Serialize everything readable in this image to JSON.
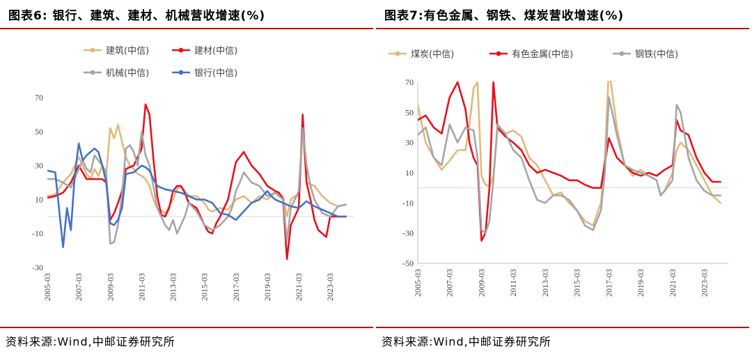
{
  "panels": [
    {
      "title": "图表6:   银行、建筑、建材、机械营收增速(%)",
      "source": "资料来源:Wind,中邮证券研究所",
      "chart_data": {
        "type": "line",
        "title": "图表6:   银行、建筑、建材、机械营收增速(%)",
        "ylim": [
          -30,
          70
        ],
        "yticks": [
          -30,
          -10,
          10,
          30,
          50,
          70
        ],
        "xlim": [
          2005.0,
          2024.5
        ],
        "xticks": [
          "2005-03",
          "2007-03",
          "2009-03",
          "2011-03",
          "2013-03",
          "2015-03",
          "2017-03",
          "2019-03",
          "2021-03",
          "2023-03"
        ],
        "grid": false,
        "legend": "top",
        "series": [
          {
            "name": "建筑(中信)",
            "color": "#e3b87b",
            "x": [
              2005.0,
              2005.5,
              2006.0,
              2006.5,
              2007.0,
              2007.25,
              2007.5,
              2007.75,
              2008.0,
              2008.25,
              2008.5,
              2008.75,
              2009.0,
              2009.25,
              2009.5,
              2009.75,
              2010.0,
              2010.25,
              2010.5,
              2010.75,
              2011.0,
              2011.25,
              2011.5,
              2011.75,
              2012.0,
              2012.5,
              2013.0,
              2013.25,
              2013.5,
              2013.75,
              2014.0,
              2014.5,
              2015.0,
              2015.25,
              2015.5,
              2016.0,
              2016.5,
              2017.0,
              2017.5,
              2018.0,
              2018.5,
              2019.0,
              2019.5,
              2020.0,
              2020.25,
              2020.5,
              2020.75,
              2021.0,
              2021.25,
              2021.5,
              2022.0,
              2022.5,
              2023.0,
              2023.5,
              2024.0
            ],
            "y": [
              12,
              13,
              20,
              25,
              35,
              30,
              25,
              22,
              28,
              24,
              30,
              25,
              52,
              46,
              54,
              44,
              35,
              30,
              28,
              25,
              24,
              22,
              18,
              10,
              5,
              2,
              10,
              16,
              18,
              15,
              12,
              12,
              8,
              4,
              3,
              5,
              4,
              10,
              12,
              8,
              12,
              10,
              14,
              12,
              0,
              10,
              12,
              12,
              50,
              20,
              18,
              12,
              8,
              6,
              7
            ]
          },
          {
            "name": "建材(中信)",
            "color": "#e8101a",
            "x": [
              2005.0,
              2005.5,
              2006.0,
              2006.5,
              2007.0,
              2007.5,
              2008.0,
              2008.5,
              2008.75,
              2009.0,
              2009.25,
              2009.5,
              2009.75,
              2010.0,
              2010.5,
              2011.0,
              2011.25,
              2011.5,
              2011.75,
              2012.0,
              2012.25,
              2012.5,
              2012.75,
              2013.0,
              2013.25,
              2013.5,
              2013.75,
              2014.0,
              2014.5,
              2015.0,
              2015.25,
              2015.5,
              2015.75,
              2016.0,
              2016.25,
              2016.5,
              2017.0,
              2017.5,
              2018.0,
              2018.5,
              2019.0,
              2019.5,
              2019.75,
              2020.0,
              2020.25,
              2020.5,
              2020.75,
              2021.0,
              2021.25,
              2021.5,
              2021.75,
              2022.0,
              2022.25,
              2022.5,
              2022.75,
              2023.0,
              2023.5,
              2024.0
            ],
            "y": [
              11,
              12,
              14,
              20,
              30,
              22,
              22,
              22,
              20,
              -2,
              2,
              8,
              15,
              28,
              30,
              40,
              66,
              60,
              34,
              12,
              1,
              0,
              5,
              15,
              18,
              18,
              14,
              8,
              5,
              -5,
              -9,
              -10,
              -4,
              0,
              5,
              10,
              32,
              38,
              30,
              25,
              18,
              15,
              14,
              10,
              -25,
              -5,
              0,
              5,
              60,
              20,
              10,
              -2,
              -8,
              -10,
              -12,
              0,
              0,
              0
            ]
          },
          {
            "name": "机械(中信)",
            "color": "#a6a6a6",
            "x": [
              2005.0,
              2005.5,
              2006.0,
              2006.5,
              2007.0,
              2007.25,
              2007.5,
              2007.75,
              2008.0,
              2008.5,
              2008.75,
              2009.0,
              2009.25,
              2009.5,
              2009.75,
              2010.0,
              2010.25,
              2010.5,
              2010.75,
              2011.0,
              2011.25,
              2011.5,
              2011.75,
              2012.0,
              2012.5,
              2012.75,
              2013.0,
              2013.25,
              2013.5,
              2013.75,
              2014.0,
              2014.5,
              2015.0,
              2015.5,
              2016.0,
              2016.5,
              2016.75,
              2017.0,
              2017.25,
              2017.5,
              2018.0,
              2018.5,
              2019.0,
              2019.5,
              2020.0,
              2020.25,
              2020.5,
              2020.75,
              2021.0,
              2021.25,
              2021.5,
              2021.75,
              2022.0,
              2022.5,
              2023.0,
              2023.5,
              2024.0
            ],
            "y": [
              22,
              22,
              20,
              17,
              28,
              33,
              28,
              26,
              36,
              30,
              26,
              -16,
              -15,
              -5,
              12,
              40,
              42,
              38,
              30,
              50,
              36,
              30,
              18,
              5,
              -5,
              -8,
              -2,
              -10,
              -5,
              0,
              8,
              3,
              -5,
              -8,
              -5,
              0,
              5,
              15,
              20,
              26,
              20,
              18,
              12,
              14,
              10,
              -14,
              5,
              10,
              15,
              52,
              30,
              18,
              10,
              2,
              0,
              6,
              7
            ]
          },
          {
            "name": "银行(中信)",
            "color": "#4472c4",
            "x": [
              2005.0,
              2005.5,
              2006.0,
              2006.25,
              2006.5,
              2006.75,
              2007.0,
              2007.25,
              2007.5,
              2008.0,
              2008.25,
              2008.5,
              2008.75,
              2009.0,
              2009.25,
              2009.5,
              2009.75,
              2010.0,
              2010.5,
              2011.0,
              2011.25,
              2011.5,
              2011.75,
              2012.0,
              2012.5,
              2013.0,
              2013.5,
              2014.0,
              2014.5,
              2015.0,
              2015.5,
              2016.0,
              2016.5,
              2017.0,
              2017.5,
              2018.0,
              2018.5,
              2019.0,
              2019.25,
              2019.5,
              2020.0,
              2020.5,
              2021.0,
              2021.5,
              2022.0,
              2022.5,
              2023.0,
              2023.5,
              2024.0
            ],
            "y": [
              27,
              26,
              -18,
              5,
              -8,
              25,
              43,
              33,
              36,
              40,
              38,
              30,
              20,
              -4,
              -5,
              -2,
              5,
              25,
              26,
              30,
              29,
              27,
              22,
              18,
              16,
              15,
              14,
              12,
              10,
              10,
              8,
              2,
              1,
              -2,
              3,
              8,
              10,
              15,
              12,
              10,
              8,
              6,
              5,
              9,
              6,
              4,
              2,
              0,
              0
            ]
          }
        ]
      }
    },
    {
      "title": "图表7:有色金属、钢铁、煤炭营收增速(%)",
      "source": "资料来源:Wind,中邮证券研究所",
      "chart_data": {
        "type": "line",
        "title": "图表7:有色金属、钢铁、煤炭营收增速(%)",
        "ylim": [
          -50,
          70
        ],
        "yticks": [
          -50,
          -30,
          -10,
          10,
          30,
          50,
          70
        ],
        "xlim": [
          2005.0,
          2024.5
        ],
        "xticks": [
          "2005-03",
          "2007-03",
          "2009-03",
          "2011-03",
          "2013-03",
          "2015-03",
          "2017-03",
          "2019-03",
          "2021-03",
          "2023-03"
        ],
        "grid": false,
        "legend": "top",
        "series": [
          {
            "name": "煤炭(中信)",
            "color": "#e3b87b",
            "x": [
              2005.0,
              2005.5,
              2006.0,
              2006.5,
              2007.0,
              2007.5,
              2008.0,
              2008.25,
              2008.5,
              2008.75,
              2009.0,
              2009.25,
              2009.5,
              2009.75,
              2010.0,
              2010.5,
              2011.0,
              2011.5,
              2012.0,
              2012.5,
              2013.0,
              2013.5,
              2014.0,
              2014.5,
              2015.0,
              2015.5,
              2016.0,
              2016.5,
              2016.75,
              2017.0,
              2017.25,
              2017.5,
              2018.0,
              2018.5,
              2019.0,
              2019.5,
              2020.0,
              2020.25,
              2020.5,
              2021.0,
              2021.25,
              2021.5,
              2022.0,
              2022.5,
              2023.0,
              2023.5,
              2024.0
            ],
            "y": [
              55,
              30,
              20,
              12,
              18,
              25,
              25,
              42,
              66,
              70,
              8,
              2,
              1,
              8,
              38,
              36,
              38,
              34,
              20,
              15,
              5,
              -5,
              -3,
              -10,
              -15,
              -22,
              -25,
              -10,
              20,
              80,
              60,
              40,
              15,
              8,
              12,
              8,
              5,
              -5,
              -2,
              10,
              25,
              30,
              25,
              15,
              5,
              -5,
              -10
            ]
          },
          {
            "name": "有色金属(中信)",
            "color": "#e8101a",
            "x": [
              2005.0,
              2005.5,
              2006.0,
              2006.5,
              2007.0,
              2007.5,
              2008.0,
              2008.25,
              2008.5,
              2008.75,
              2009.0,
              2009.25,
              2009.5,
              2009.75,
              2010.0,
              2010.5,
              2011.0,
              2011.5,
              2012.0,
              2012.5,
              2013.0,
              2013.5,
              2014.0,
              2014.5,
              2015.0,
              2015.5,
              2016.0,
              2016.5,
              2017.0,
              2017.5,
              2018.0,
              2018.5,
              2019.0,
              2019.5,
              2020.0,
              2020.5,
              2021.0,
              2021.25,
              2021.5,
              2022.0,
              2022.5,
              2023.0,
              2023.5,
              2024.0
            ],
            "y": [
              45,
              48,
              40,
              36,
              60,
              70,
              52,
              30,
              20,
              15,
              -35,
              -30,
              0,
              70,
              40,
              34,
              30,
              25,
              15,
              10,
              12,
              10,
              8,
              5,
              5,
              2,
              0,
              0,
              33,
              20,
              15,
              10,
              8,
              10,
              8,
              12,
              15,
              45,
              38,
              35,
              20,
              10,
              4,
              4
            ]
          },
          {
            "name": "钢铁(中信)",
            "color": "#a6a6a6",
            "x": [
              2005.0,
              2005.5,
              2006.0,
              2006.5,
              2007.0,
              2007.5,
              2008.0,
              2008.5,
              2008.75,
              2009.0,
              2009.25,
              2009.5,
              2009.75,
              2010.0,
              2010.5,
              2011.0,
              2011.5,
              2012.0,
              2012.5,
              2013.0,
              2013.5,
              2014.0,
              2014.5,
              2015.0,
              2015.5,
              2016.0,
              2016.5,
              2016.75,
              2017.0,
              2017.25,
              2017.5,
              2018.0,
              2018.5,
              2019.0,
              2019.5,
              2020.0,
              2020.25,
              2020.5,
              2021.0,
              2021.25,
              2021.5,
              2022.0,
              2022.5,
              2023.0,
              2023.5,
              2024.0
            ],
            "y": [
              35,
              40,
              20,
              15,
              42,
              30,
              40,
              38,
              20,
              -28,
              -30,
              -22,
              5,
              42,
              36,
              25,
              20,
              5,
              -8,
              -10,
              -5,
              -5,
              -8,
              -15,
              -25,
              -28,
              -15,
              10,
              60,
              48,
              35,
              15,
              12,
              10,
              8,
              5,
              -5,
              -2,
              5,
              55,
              50,
              20,
              5,
              -2,
              -5,
              -5
            ]
          }
        ]
      }
    }
  ]
}
